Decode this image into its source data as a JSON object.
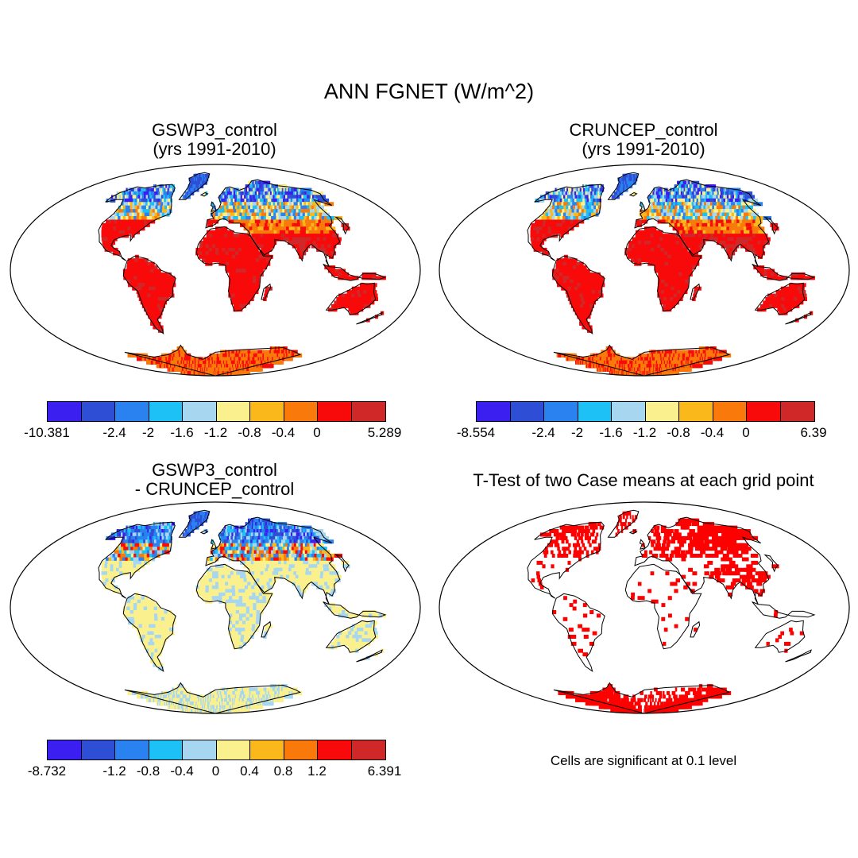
{
  "title": "ANN FGNET (W/m^2)",
  "panels": [
    {
      "line1": "GSWP3_control",
      "line2": "(yrs 1991-2010)"
    },
    {
      "line1": "CRUNCEP_control",
      "line2": "(yrs 1991-2010)"
    },
    {
      "line1": "GSWP3_control",
      "line2": "- CRUNCEP_control"
    },
    {
      "line1": "T-Test of two Case means at each grid point",
      "line2": ""
    }
  ],
  "note": "Cells are significant at 0.1 level",
  "colors": [
    "#3a1ff0",
    "#2e4ed6",
    "#2a82f0",
    "#1ec1f5",
    "#a6d6f0",
    "#fbf08e",
    "#fbb81a",
    "#f97a0a",
    "#f90a0a",
    "#d02828"
  ],
  "sig_color": "#ff0000",
  "colorbars": [
    {
      "labels": [
        "-10.381",
        "-2.4",
        "-2",
        "-1.6",
        "-1.2",
        "-0.8",
        "-0.4",
        "0",
        "5.289"
      ]
    },
    {
      "labels": [
        "-8.554",
        "-2.4",
        "-2",
        "-1.6",
        "-1.2",
        "-0.8",
        "-0.4",
        "0",
        "6.39"
      ]
    },
    {
      "labels": [
        "-8.732",
        "-1.2",
        "-0.8",
        "-0.4",
        "0",
        "0.4",
        "0.8",
        "1.2",
        "6.391"
      ]
    }
  ]
}
